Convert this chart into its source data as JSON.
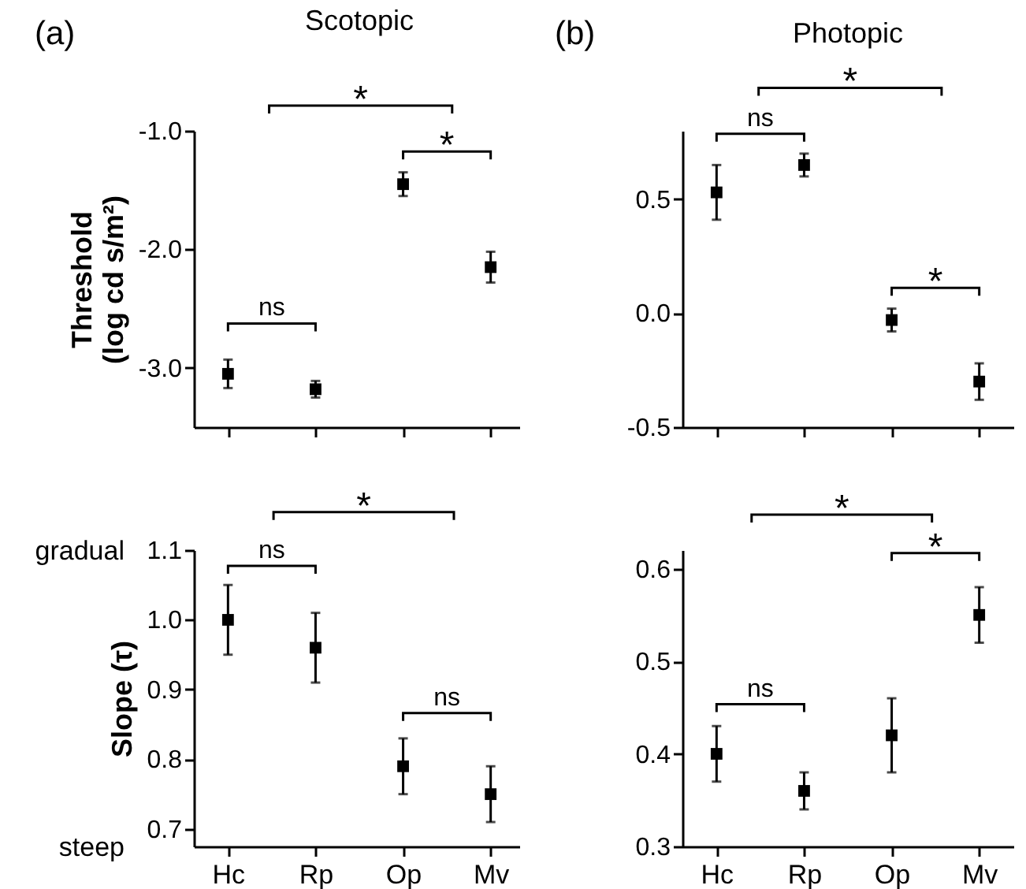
{
  "chart_data": [
    {
      "type": "scatter",
      "title": "Scotopic",
      "ylabel": "Threshold\n(log cd s/m²)",
      "categories": [
        null,
        null,
        null,
        null
      ],
      "series": [
        {
          "color": "#000000",
          "values": [
            -3.05,
            -3.18,
            -1.45,
            -2.15
          ],
          "errors": [
            0.12,
            0.07,
            0.1,
            0.13
          ]
        }
      ],
      "ylim": [
        -3.5,
        -1.0
      ],
      "yticks": [
        {
          "value": -1.0,
          "label": "-1.0"
        },
        {
          "value": -2.0,
          "label": "-2.0"
        },
        {
          "value": -3.0,
          "label": "-3.0"
        }
      ],
      "marker": "square",
      "tick_labels": "y",
      "annotations": [
        "(a)",
        "*",
        "*",
        "ns"
      ]
    },
    {
      "type": "scatter",
      "title": "Photopic",
      "categories": [
        null,
        null,
        null,
        null
      ],
      "series": [
        {
          "color": "#000000",
          "values": [
            0.53,
            0.65,
            -0.03,
            -0.3
          ],
          "errors": [
            0.12,
            0.05,
            0.05,
            0.08
          ]
        }
      ],
      "ylim": [
        -0.5,
        0.8
      ],
      "yticks": [
        0.5,
        {
          "value": 0,
          "label": "0.0"
        },
        -0.5
      ],
      "marker": "square",
      "tick_labels": "y",
      "annotations": [
        "(b)",
        "*",
        "ns",
        "*"
      ]
    },
    {
      "type": "scatter",
      "ylabel": "Slope  (τ)",
      "categories": [
        "Hc",
        "Rp",
        "Op",
        "Mv"
      ],
      "series": [
        {
          "color": "#000000",
          "values": [
            1.0,
            0.96,
            0.79,
            0.75
          ],
          "errors": [
            0.05,
            0.05,
            0.04,
            0.04
          ]
        }
      ],
      "ylim": [
        0.675,
        1.1
      ],
      "yticks": [
        1.1,
        {
          "value": 1.0,
          "label": "1.0"
        },
        0.9,
        0.8,
        0.7
      ],
      "marker": "square",
      "annotations": [
        "*",
        "ns",
        "ns",
        "gradual",
        "steep"
      ]
    },
    {
      "type": "scatter",
      "categories": [
        "Hc",
        "Rp",
        "Op",
        "Mv"
      ],
      "series": [
        {
          "color": "#000000",
          "values": [
            0.4,
            0.36,
            0.42,
            0.55
          ],
          "errors": [
            0.03,
            0.02,
            0.04,
            0.03
          ]
        }
      ],
      "ylim": [
        0.3,
        0.62
      ],
      "yticks": [
        0.6,
        0.5,
        0.4,
        0.3
      ],
      "marker": "square",
      "annotations": [
        "*",
        "*",
        "ns"
      ]
    }
  ]
}
